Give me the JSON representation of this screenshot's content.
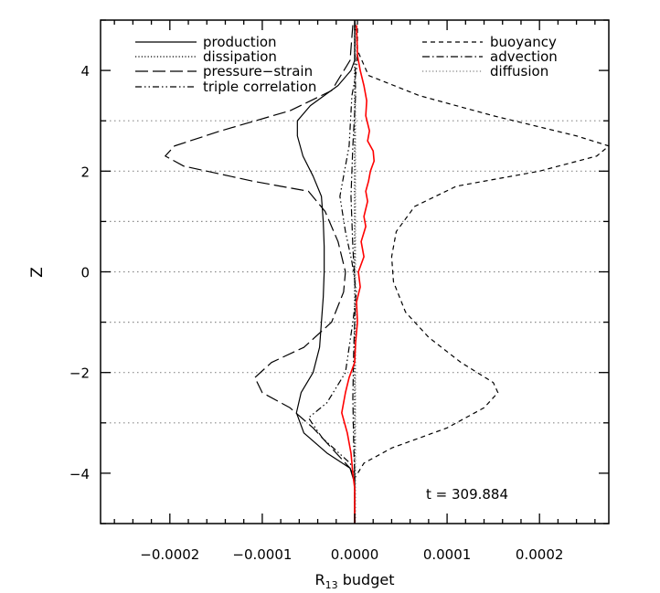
{
  "chart_data": {
    "type": "line",
    "xlabel_main": "R",
    "xlabel_sub": "13",
    "xlabel_tail": " budget",
    "ylabel": "Z",
    "annotation": "t  =  309.884",
    "xlim": [
      -0.000275,
      0.000275
    ],
    "ylim": [
      -5,
      5
    ],
    "x_ticks": [
      -0.0002,
      -0.0001,
      0.0,
      0.0001,
      0.0002
    ],
    "x_tick_labels": [
      "−0.0002",
      "−0.0001",
      "0.0000",
      "0.0001",
      "0.0002"
    ],
    "y_ticks": [
      -4,
      -2,
      0,
      2,
      4
    ],
    "y_tick_labels": [
      "−4",
      "−2",
      "0",
      "2",
      "4"
    ],
    "hlines": [
      -3,
      -1,
      1,
      3,
      2,
      0,
      -2
    ],
    "legend_left": [
      "production",
      "dissipation",
      "pressure−strain",
      "triple correlation"
    ],
    "legend_right": [
      "buoyancy",
      "advection",
      "diffusion"
    ],
    "series": [
      {
        "name": "production",
        "style": "solid",
        "color": "#000000",
        "points": [
          [
            0,
            5
          ],
          [
            0,
            4.2
          ],
          [
            -4e-06,
            4.0
          ],
          [
            -1.8e-05,
            3.7
          ],
          [
            -4.8e-05,
            3.3
          ],
          [
            -6.2e-05,
            3.0
          ],
          [
            -6.2e-05,
            2.7
          ],
          [
            -5.6e-05,
            2.3
          ],
          [
            -4.5e-05,
            1.9
          ],
          [
            -3.6e-05,
            1.5
          ],
          [
            -3.4e-05,
            1.0
          ],
          [
            -3.3e-05,
            0.5
          ],
          [
            -3.3e-05,
            0.0
          ],
          [
            -3.4e-05,
            -0.5
          ],
          [
            -3.6e-05,
            -1.0
          ],
          [
            -3.8e-05,
            -1.5
          ],
          [
            -4.5e-05,
            -2.0
          ],
          [
            -5.8e-05,
            -2.4
          ],
          [
            -6.3e-05,
            -2.8
          ],
          [
            -5.5e-05,
            -3.2
          ],
          [
            -3e-05,
            -3.6
          ],
          [
            -5e-06,
            -3.9
          ],
          [
            0,
            -4.2
          ],
          [
            0,
            -5
          ]
        ]
      },
      {
        "name": "dissipation",
        "style": "dotted",
        "color": "#000000",
        "points": [
          [
            0,
            5
          ],
          [
            0,
            -5
          ]
        ]
      },
      {
        "name": "pressure−strain",
        "style": "longdash",
        "color": "#000000",
        "points": [
          [
            -2e-06,
            4.9
          ],
          [
            -5e-06,
            4.2
          ],
          [
            -2.5e-05,
            3.6
          ],
          [
            -7e-05,
            3.2
          ],
          [
            -0.000145,
            2.8
          ],
          [
            -0.000195,
            2.5
          ],
          [
            -0.000205,
            2.3
          ],
          [
            -0.000185,
            2.1
          ],
          [
            -0.00011,
            1.8
          ],
          [
            -5e-05,
            1.6
          ],
          [
            -3.2e-05,
            1.2
          ],
          [
            -1.8e-05,
            0.6
          ],
          [
            -1e-05,
            0.0
          ],
          [
            -1.2e-05,
            -0.4
          ],
          [
            -2.5e-05,
            -1.0
          ],
          [
            -5.5e-05,
            -1.5
          ],
          [
            -9e-05,
            -1.8
          ],
          [
            -0.000108,
            -2.1
          ],
          [
            -0.0001,
            -2.4
          ],
          [
            -7e-05,
            -2.7
          ],
          [
            -4.5e-05,
            -3.1
          ],
          [
            -2e-05,
            -3.6
          ],
          [
            -5e-06,
            -3.9
          ],
          [
            0,
            -4.1
          ],
          [
            0,
            -5
          ]
        ]
      },
      {
        "name": "triple correlation",
        "style": "dashdotdot",
        "color": "#000000",
        "points": [
          [
            0,
            5
          ],
          [
            3e-06,
            4.5
          ],
          [
            2e-06,
            4.0
          ],
          [
            -3e-06,
            3.5
          ],
          [
            -6e-06,
            2.5
          ],
          [
            -1.2e-05,
            1.9
          ],
          [
            -1.6e-05,
            1.5
          ],
          [
            -1e-05,
            0.8
          ],
          [
            -3e-06,
            0.2
          ],
          [
            2e-06,
            -0.4
          ],
          [
            -2e-06,
            -1.0
          ],
          [
            -1e-05,
            -2.0
          ],
          [
            -3e-05,
            -2.6
          ],
          [
            -5e-05,
            -2.9
          ],
          [
            -3.5e-05,
            -3.3
          ],
          [
            -5e-06,
            -3.8
          ],
          [
            0,
            -4.0
          ],
          [
            0,
            -5
          ]
        ]
      },
      {
        "name": "buoyancy",
        "style": "shortdash",
        "color": "#000000",
        "points": [
          [
            3e-06,
            5
          ],
          [
            3e-06,
            4.4
          ],
          [
            1.5e-05,
            3.9
          ],
          [
            7e-05,
            3.5
          ],
          [
            0.00015,
            3.1
          ],
          [
            0.00024,
            2.7
          ],
          [
            0.000275,
            2.5
          ],
          [
            0.000262,
            2.3
          ],
          [
            0.0002,
            2.0
          ],
          [
            0.00011,
            1.7
          ],
          [
            6.5e-05,
            1.3
          ],
          [
            4.5e-05,
            0.8
          ],
          [
            4e-05,
            0.3
          ],
          [
            4.2e-05,
            -0.2
          ],
          [
            5.5e-05,
            -0.8
          ],
          [
            8e-05,
            -1.3
          ],
          [
            0.000115,
            -1.8
          ],
          [
            0.00015,
            -2.2
          ],
          [
            0.000155,
            -2.4
          ],
          [
            0.00014,
            -2.7
          ],
          [
            0.0001,
            -3.1
          ],
          [
            4e-05,
            -3.5
          ],
          [
            1e-05,
            -3.8
          ],
          [
            0,
            -4.1
          ],
          [
            0,
            -5
          ]
        ]
      },
      {
        "name": "advection",
        "style": "dashdot",
        "color": "#000000",
        "points": [
          [
            0,
            4.9
          ],
          [
            1e-06,
            3.5
          ],
          [
            -2e-06,
            2.5
          ],
          [
            -4e-06,
            1.5
          ],
          [
            -2e-06,
            0.5
          ],
          [
            1e-06,
            -0.5
          ],
          [
            -1e-06,
            -1.5
          ],
          [
            -2e-06,
            -2.5
          ],
          [
            -1e-06,
            -3.5
          ],
          [
            0,
            -4.0
          ],
          [
            0,
            -5
          ]
        ]
      },
      {
        "name": "diffusion",
        "style": "dotted-gray",
        "color": "#808080",
        "points": [
          [
            1e-06,
            5
          ],
          [
            1e-06,
            -5
          ]
        ]
      },
      {
        "name": "",
        "style": "solid",
        "color": "#ff0000",
        "points": [
          [
            2e-06,
            4.9
          ],
          [
            3e-06,
            4.3
          ],
          [
            6e-06,
            4.0
          ],
          [
            1e-05,
            3.7
          ],
          [
            1.3e-05,
            3.4
          ],
          [
            1.2e-05,
            3.1
          ],
          [
            1.6e-05,
            2.8
          ],
          [
            1.4e-05,
            2.6
          ],
          [
            2e-05,
            2.4
          ],
          [
            2.1e-05,
            2.2
          ],
          [
            1.7e-05,
            2.0
          ],
          [
            1.5e-05,
            1.8
          ],
          [
            1.2e-05,
            1.6
          ],
          [
            1.4e-05,
            1.4
          ],
          [
            1e-05,
            1.1
          ],
          [
            1.2e-05,
            0.9
          ],
          [
            7e-06,
            0.6
          ],
          [
            1e-05,
            0.3
          ],
          [
            4e-06,
            0.0
          ],
          [
            6e-06,
            -0.3
          ],
          [
            2e-06,
            -0.6
          ],
          [
            3e-06,
            -1.0
          ],
          [
            1e-06,
            -1.4
          ],
          [
            0.0,
            -1.8
          ],
          [
            -6e-06,
            -2.1
          ],
          [
            -1e-05,
            -2.4
          ],
          [
            -1.4e-05,
            -2.8
          ],
          [
            -8e-06,
            -3.2
          ],
          [
            -4e-06,
            -3.6
          ],
          [
            -2e-06,
            -4.0
          ],
          [
            0,
            -4.3
          ],
          [
            0,
            -5
          ]
        ]
      }
    ]
  }
}
